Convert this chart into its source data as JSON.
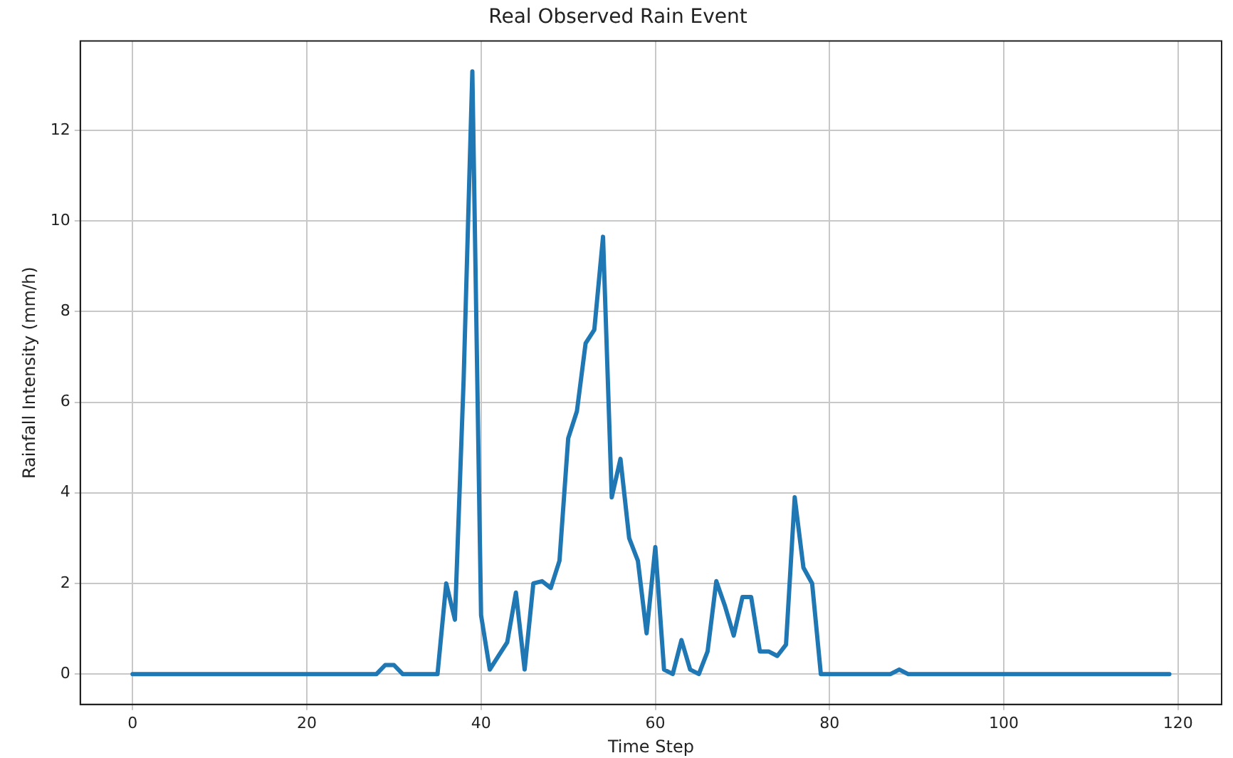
{
  "chart_data": {
    "type": "line",
    "title": "Real Observed Rain Event",
    "xlabel": "Time Step",
    "ylabel": "Rainfall Intensity (mm/h)",
    "x": [
      0,
      1,
      2,
      3,
      4,
      5,
      6,
      7,
      8,
      9,
      10,
      11,
      12,
      13,
      14,
      15,
      16,
      17,
      18,
      19,
      20,
      21,
      22,
      23,
      24,
      25,
      26,
      27,
      28,
      29,
      30,
      31,
      32,
      33,
      34,
      35,
      36,
      37,
      38,
      39,
      40,
      41,
      42,
      43,
      44,
      45,
      46,
      47,
      48,
      49,
      50,
      51,
      52,
      53,
      54,
      55,
      56,
      57,
      58,
      59,
      60,
      61,
      62,
      63,
      64,
      65,
      66,
      67,
      68,
      69,
      70,
      71,
      72,
      73,
      74,
      75,
      76,
      77,
      78,
      79,
      80,
      81,
      82,
      83,
      84,
      85,
      86,
      87,
      88,
      89,
      90,
      91,
      92,
      93,
      94,
      95,
      96,
      97,
      98,
      99,
      100,
      101,
      102,
      103,
      104,
      105,
      106,
      107,
      108,
      109,
      110,
      111,
      112,
      113,
      114,
      115,
      116,
      117,
      118,
      119
    ],
    "series": [
      {
        "color": "#1f77b4",
        "values": [
          0,
          0,
          0,
          0,
          0,
          0,
          0,
          0,
          0,
          0,
          0,
          0,
          0,
          0,
          0,
          0,
          0,
          0,
          0,
          0,
          0,
          0,
          0,
          0,
          0,
          0,
          0,
          0,
          0,
          0.2,
          0.2,
          0,
          0,
          0,
          0,
          0,
          2.0,
          1.2,
          6.5,
          13.3,
          1.3,
          0.1,
          0.4,
          0.7,
          1.8,
          0.1,
          2.0,
          2.05,
          1.9,
          2.5,
          5.2,
          5.8,
          7.3,
          7.6,
          9.65,
          3.9,
          4.75,
          3.0,
          2.5,
          0.9,
          2.8,
          0.1,
          0,
          0.75,
          0.1,
          0,
          0.5,
          2.05,
          1.5,
          0.85,
          1.7,
          1.7,
          0.5,
          0.5,
          0.4,
          0.65,
          3.9,
          2.35,
          2.0,
          0,
          0,
          0,
          0,
          0,
          0,
          0,
          0,
          0,
          0.1,
          0,
          0,
          0,
          0,
          0,
          0,
          0,
          0,
          0,
          0,
          0,
          0,
          0,
          0,
          0,
          0,
          0,
          0,
          0,
          0,
          0,
          0,
          0,
          0,
          0,
          0,
          0,
          0,
          0,
          0,
          0
        ]
      }
    ],
    "xlim": [
      -6,
      125
    ],
    "xticks": [
      0,
      20,
      40,
      60,
      80,
      100,
      120
    ],
    "ylim": [
      -0.67,
      13.97
    ],
    "yticks": [
      0,
      2,
      4,
      6,
      8,
      10,
      12
    ],
    "grid": true,
    "marker": "none",
    "line_style": "solid",
    "legend": false
  }
}
